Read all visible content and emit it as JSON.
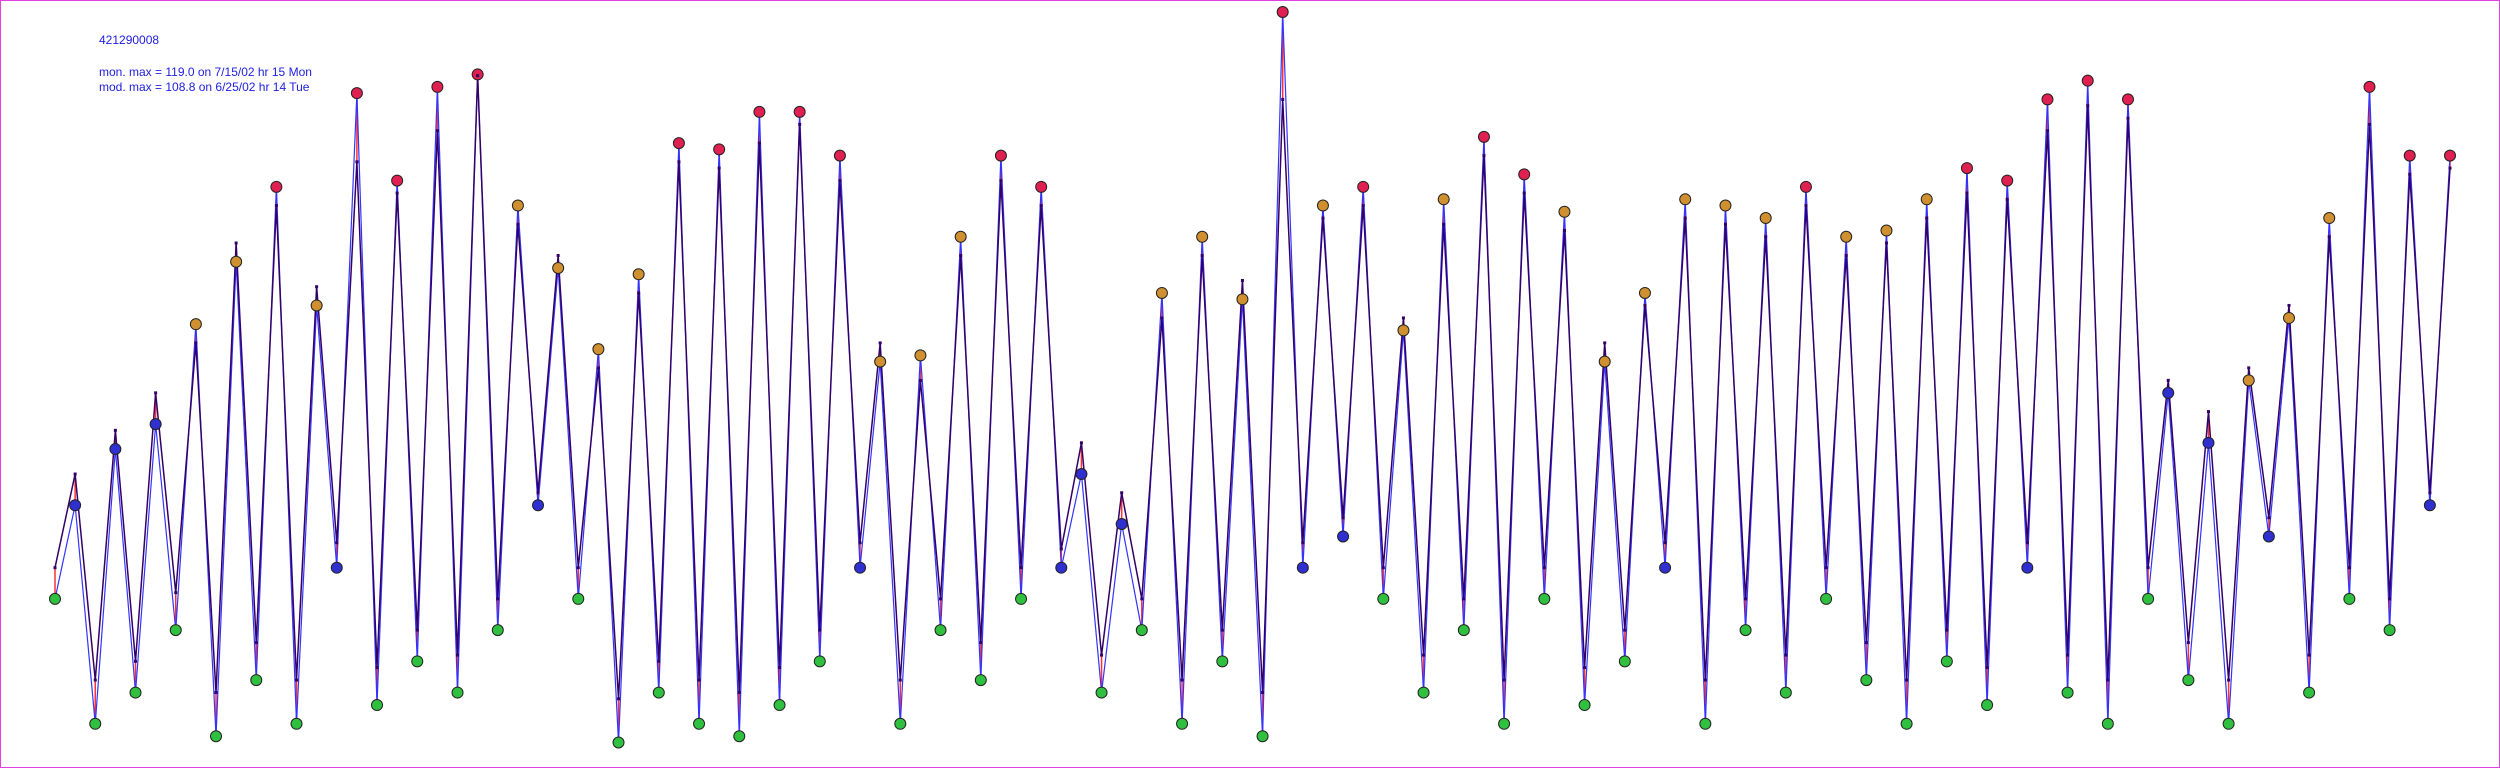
{
  "chart_data": {
    "type": "line",
    "title": "421290008",
    "annotations": [
      "mon. max =  119.0 on 7/15/02 hr 15 Mon",
      "mod. max =  108.8 on 6/25/02 hr 14 Tue"
    ],
    "difference_color": "#ff3030",
    "marker_colors": [
      "#30c040",
      "#3030d0",
      "#d09030",
      "#e02050"
    ],
    "series": [
      {
        "color": "#3333ff",
        "values": [
          25,
          40,
          5,
          49,
          10,
          53,
          20,
          69,
          3,
          79,
          12,
          91,
          5,
          72,
          30,
          106,
          8,
          92,
          15,
          107,
          10,
          109,
          20,
          88,
          40,
          78,
          25,
          65,
          2,
          77,
          10,
          98,
          5,
          97,
          3,
          103,
          8,
          103,
          15,
          96,
          30,
          63,
          5,
          64,
          20,
          83,
          12,
          96,
          25,
          91,
          30,
          45,
          10,
          37,
          20,
          74,
          5,
          83,
          15,
          73,
          3,
          119,
          30,
          88,
          35,
          91,
          25,
          68,
          10,
          89,
          20,
          99,
          5,
          93,
          25,
          87,
          8,
          63,
          15,
          74,
          30,
          89,
          5,
          88,
          20,
          86,
          10,
          91,
          25,
          83,
          12,
          84,
          5,
          89,
          15,
          94,
          8,
          92,
          30,
          105,
          10,
          108,
          5,
          105,
          25,
          58,
          12,
          50,
          5,
          60,
          35,
          70,
          10,
          86,
          25,
          107,
          20,
          96,
          40,
          96
        ]
      },
      {
        "color": "#330066",
        "values": [
          30,
          45,
          12,
          52,
          15,
          58,
          26,
          66,
          10,
          82,
          18,
          88,
          12,
          75,
          34,
          95,
          14,
          90,
          20,
          100,
          16,
          108.8,
          25,
          85,
          42,
          80,
          30,
          62,
          9,
          74,
          15,
          95,
          12,
          94,
          10,
          98,
          14,
          101,
          20,
          92,
          34,
          66,
          12,
          60,
          25,
          80,
          18,
          92,
          30,
          88,
          33,
          50,
          16,
          42,
          25,
          70,
          12,
          80,
          20,
          76,
          10,
          105,
          34,
          86,
          38,
          88,
          30,
          70,
          16,
          85,
          25,
          96,
          12,
          90,
          30,
          84,
          14,
          66,
          20,
          72,
          34,
          86,
          12,
          85,
          25,
          83,
          16,
          88,
          30,
          80,
          18,
          82,
          12,
          86,
          20,
          90,
          14,
          89,
          34,
          100,
          16,
          104,
          12,
          102,
          30,
          60,
          18,
          55,
          12,
          62,
          38,
          72,
          16,
          83,
          30,
          101,
          25,
          93,
          42,
          94
        ]
      }
    ]
  }
}
